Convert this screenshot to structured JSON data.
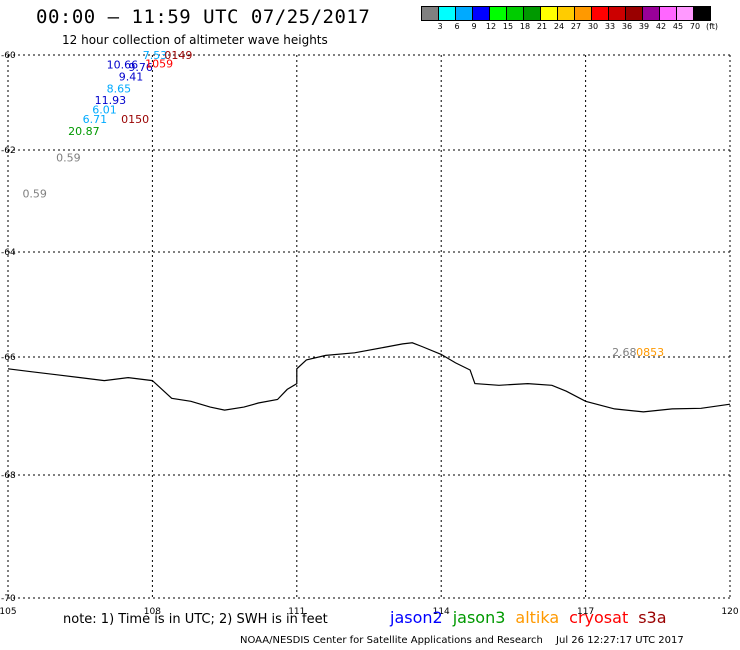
{
  "title": "00:00 – 11:59 UTC 07/25/2017",
  "subtitle": "12 hour collection of altimeter wave heights",
  "scale": {
    "colors": [
      "#808080",
      "#00ffff",
      "#00aaff",
      "#0000ff",
      "#00ff00",
      "#00cc00",
      "#009900",
      "#ffff00",
      "#ffcc00",
      "#ff9900",
      "#ff0000",
      "#cc0000",
      "#990000",
      "#990099",
      "#ff66ff",
      "#ff99ff",
      "#000000"
    ],
    "labels": [
      "3",
      "6",
      "9",
      "12",
      "15",
      "18",
      "21",
      "24",
      "27",
      "30",
      "33",
      "36",
      "39",
      "42",
      "45",
      "70",
      "(ft)"
    ]
  },
  "y_axis": [
    "-60",
    "-62",
    "-64",
    "-66",
    "-68",
    "-70"
  ],
  "x_axis": [
    "105",
    "108",
    "111",
    "114",
    "117",
    "120"
  ],
  "observations": [
    {
      "text": "7.53",
      "color": "#00aaff",
      "lon": 107.8,
      "lat": -60.0
    },
    {
      "text": "0149",
      "color": "#990000",
      "lon": 108.25,
      "lat": -60.0
    },
    {
      "text": "10.66",
      "color": "#0000cc",
      "lon": 107.05,
      "lat": -60.2
    },
    {
      "text": "9.76",
      "color": "#0000cc",
      "lon": 107.5,
      "lat": -60.25
    },
    {
      "text": "1059",
      "color": "#ff0000",
      "lon": 107.85,
      "lat": -60.18
    },
    {
      "text": "9.41",
      "color": "#0000cc",
      "lon": 107.3,
      "lat": -60.45
    },
    {
      "text": "8.65",
      "color": "#00aaff",
      "lon": 107.05,
      "lat": -60.7
    },
    {
      "text": "11.93",
      "color": "#0000cc",
      "lon": 106.8,
      "lat": -60.95
    },
    {
      "text": "6.01",
      "color": "#00aaff",
      "lon": 106.75,
      "lat": -61.15
    },
    {
      "text": "6.71",
      "color": "#00aaff",
      "lon": 106.55,
      "lat": -61.35
    },
    {
      "text": "0150",
      "color": "#990000",
      "lon": 107.35,
      "lat": -61.35
    },
    {
      "text": "20.87",
      "color": "#009900",
      "lon": 106.25,
      "lat": -61.6
    },
    {
      "text": "0.59",
      "color": "#808080",
      "lon": 106.0,
      "lat": -62.15
    },
    {
      "text": "0.59",
      "color": "#808080",
      "lon": 105.3,
      "lat": -62.85
    },
    {
      "text": "2.68",
      "color": "#808080",
      "lon": 117.55,
      "lat": -65.9
    },
    {
      "text": "0853",
      "color": "#ff9900",
      "lon": 118.05,
      "lat": -65.9
    }
  ],
  "coastline": [
    [
      105.0,
      -66.2
    ],
    [
      105.5,
      -66.25
    ],
    [
      106.0,
      -66.3
    ],
    [
      106.5,
      -66.35
    ],
    [
      107.0,
      -66.4
    ],
    [
      107.5,
      -66.35
    ],
    [
      108.0,
      -66.4
    ],
    [
      108.4,
      -66.7
    ],
    [
      108.8,
      -66.75
    ],
    [
      109.2,
      -66.85
    ],
    [
      109.5,
      -66.9
    ],
    [
      109.9,
      -66.85
    ],
    [
      110.2,
      -66.78
    ],
    [
      110.6,
      -66.72
    ],
    [
      110.8,
      -66.55
    ],
    [
      111.0,
      -66.45
    ],
    [
      111.0,
      -66.2
    ],
    [
      111.2,
      -66.05
    ],
    [
      111.6,
      -65.97
    ],
    [
      112.2,
      -65.92
    ],
    [
      112.8,
      -65.82
    ],
    [
      113.2,
      -65.75
    ],
    [
      113.4,
      -65.73
    ],
    [
      113.6,
      -65.8
    ],
    [
      114.0,
      -65.95
    ],
    [
      114.3,
      -66.1
    ],
    [
      114.6,
      -66.22
    ],
    [
      114.7,
      -66.45
    ],
    [
      115.2,
      -66.48
    ],
    [
      115.8,
      -66.45
    ],
    [
      116.3,
      -66.48
    ],
    [
      116.6,
      -66.58
    ],
    [
      117.0,
      -66.75
    ],
    [
      117.6,
      -66.88
    ],
    [
      118.2,
      -66.93
    ],
    [
      118.8,
      -66.88
    ],
    [
      119.4,
      -66.87
    ],
    [
      120.0,
      -66.8
    ]
  ],
  "note": "note:  1) Time is in UTC;  2) SWH is in feet",
  "satellites": [
    {
      "name": "jason2",
      "color": "#0000ff"
    },
    {
      "name": "jason3",
      "color": "#009900"
    },
    {
      "name": "altika",
      "color": "#ff9900"
    },
    {
      "name": "cryosat",
      "color": "#ff0000"
    },
    {
      "name": "s3a",
      "color": "#990000"
    }
  ],
  "footer_left": "NOAA/NESDIS Center for Satellite Applications and Research",
  "footer_right": "Jul 26 12:27:17 UTC 2017"
}
